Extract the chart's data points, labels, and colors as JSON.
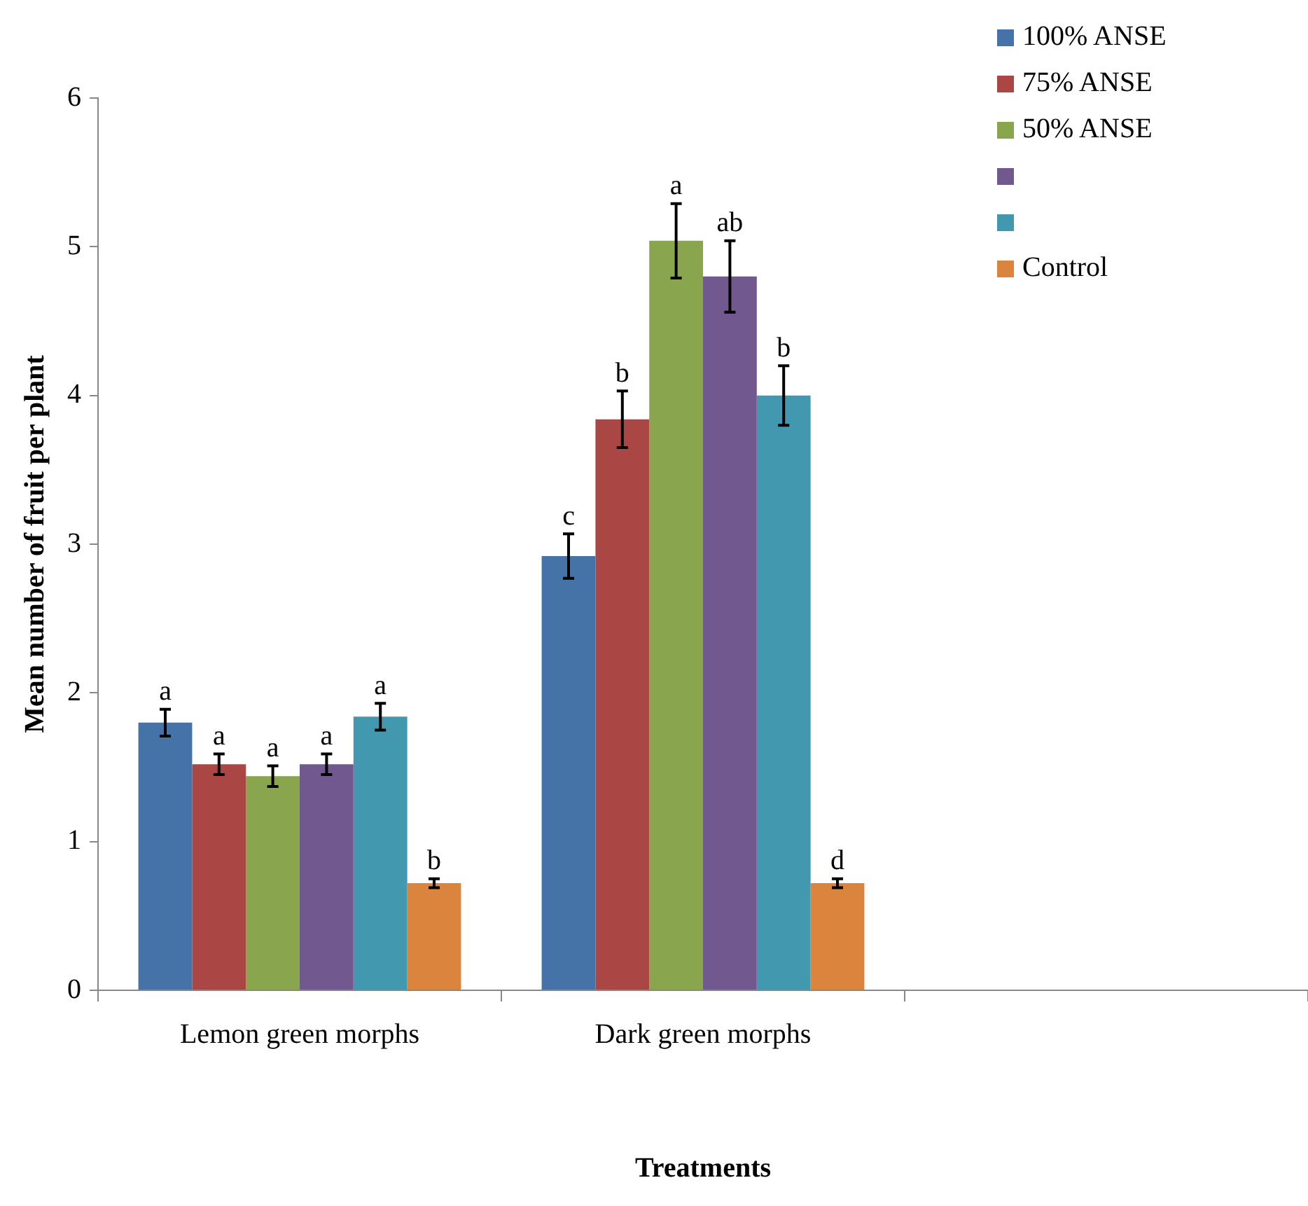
{
  "chart_data": {
    "type": "bar",
    "xlabel": "Treatments",
    "ylabel": "Mean number of fruit per plant",
    "categories": [
      "Lemon green morphs",
      "Dark green morphs",
      null
    ],
    "series": [
      {
        "name": "100% ANSE",
        "color": "#4572a7",
        "values": [
          1.8,
          2.92,
          null
        ],
        "errors": [
          0.09,
          0.15,
          null
        ]
      },
      {
        "name": "75% ANSE",
        "color": "#aa4643",
        "values": [
          1.52,
          3.84,
          null
        ],
        "errors": [
          0.07,
          0.19,
          null
        ]
      },
      {
        "name": "50% ANSE",
        "color": "#89a54e",
        "values": [
          1.44,
          5.04,
          null
        ],
        "errors": [
          0.07,
          0.25,
          null
        ]
      },
      {
        "color": "#71588f",
        "values": [
          1.52,
          4.8,
          null
        ],
        "errors": [
          0.07,
          0.24,
          null
        ]
      },
      {
        "color": "#4198af",
        "values": [
          1.84,
          4.0,
          null
        ],
        "errors": [
          0.09,
          0.2,
          null
        ]
      },
      {
        "name": "Control",
        "color": "#db843d",
        "values": [
          0.72,
          0.72,
          null
        ],
        "errors": [
          0.03,
          0.03,
          null
        ]
      }
    ],
    "ylim": [
      0,
      6
    ],
    "yticks": [
      0,
      1,
      2,
      3,
      4,
      5,
      6
    ],
    "grid": false,
    "legend": "top right",
    "annotations": [
      "a",
      "a",
      "a",
      "a",
      "a",
      "b",
      "c",
      "b",
      "a",
      "ab",
      "b",
      "d"
    ]
  }
}
